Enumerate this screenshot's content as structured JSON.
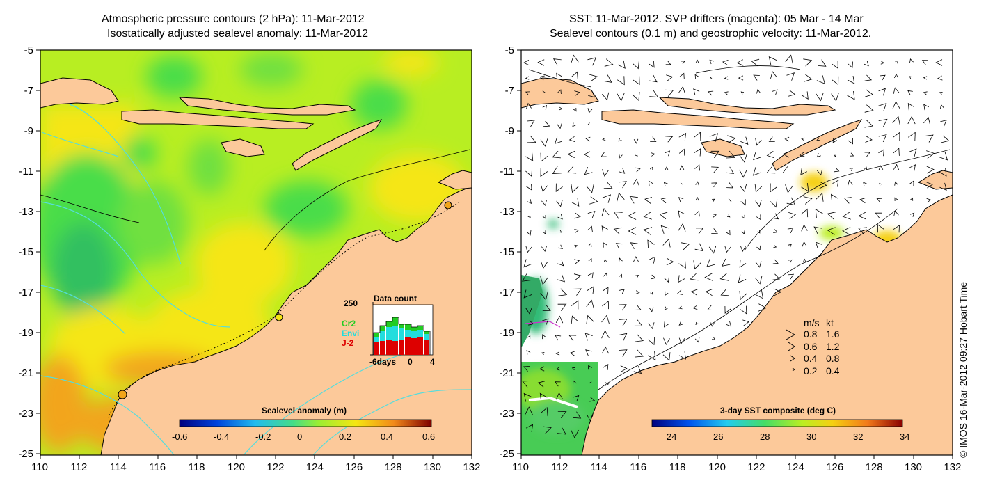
{
  "left_panel": {
    "title_line1": "Atmospheric pressure contours (2 hPa): 11-Mar-2012",
    "title_line2": "Isostatically adjusted sealevel anomaly: 11-Mar-2012",
    "colorbar": {
      "title": "Sealevel anomaly (m)",
      "ticks": [
        "-0.6",
        "-0.4",
        "-0.2",
        "0",
        "0.2",
        "0.4",
        "0.6"
      ]
    },
    "inset": {
      "title": "Data count",
      "ymax_label": "250",
      "x_labels": [
        "-6days",
        "0",
        "4"
      ],
      "legend": [
        {
          "label": "Cr2",
          "color": "#22cc22"
        },
        {
          "label": "Envi",
          "color": "#22dddd"
        },
        {
          "label": "J-2",
          "color": "#dd0000"
        }
      ]
    }
  },
  "right_panel": {
    "title_line1": "SST: 11-Mar-2012. SVP drifters (magenta): 05 Mar - 14 Mar",
    "title_line2": "Sealevel contours (0.1 m) and geostrophic velocity: 11-Mar-2012.",
    "colorbar": {
      "title": "3-day SST composite (deg C)",
      "ticks": [
        "24",
        "26",
        "28",
        "30",
        "32",
        "34"
      ]
    },
    "velocity_legend": {
      "header_ms": "m/s",
      "header_kt": "kt",
      "rows": [
        {
          "ms": "0.8",
          "kt": "1.6"
        },
        {
          "ms": "0.6",
          "kt": "1.2"
        },
        {
          "ms": "0.4",
          "kt": "0.8"
        },
        {
          "ms": "0.2",
          "kt": "0.4"
        }
      ]
    }
  },
  "axes": {
    "y_labels": [
      "-5",
      "-7",
      "-9",
      "-11",
      "-13",
      "-15",
      "-17",
      "-19",
      "-21",
      "-23",
      "-25"
    ],
    "x_labels": [
      "110",
      "112",
      "114",
      "116",
      "118",
      "120",
      "122",
      "124",
      "126",
      "128",
      "130",
      "132"
    ]
  },
  "credit": "© IMOS 16-Mar-2012 09:27 Hobart Time",
  "colors": {
    "land": "#fcc99a",
    "ssa_green": "#48dd48",
    "ssa_lime": "#b8ee22",
    "ssa_yellow": "#f5e612",
    "ssa_orange": "#f2a51a",
    "contour_cyan": "#55dddd"
  }
}
